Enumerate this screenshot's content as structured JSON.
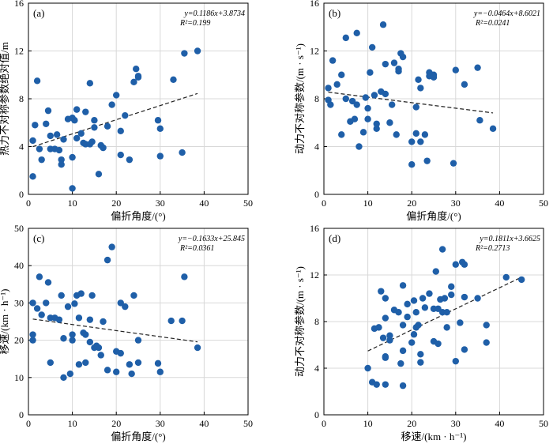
{
  "figure_title": "",
  "chart_data": [
    {
      "type": "scatter",
      "panel": "(a)",
      "xlabel": "偏折角度/(°)",
      "ylabel": "热力不对称参数绝对值/m",
      "xlim": [
        0,
        50
      ],
      "ylim": [
        0,
        16
      ],
      "xticks": [
        "0",
        "10",
        "20",
        "30",
        "40",
        "50"
      ],
      "yticks": [
        "0",
        "4",
        "8",
        "12",
        "16"
      ],
      "grid": true,
      "equation": "y=0.1186x+3.8734",
      "r2": "R²=0.199",
      "trend": {
        "slope": 0.1186,
        "intercept": 3.8734,
        "x_range": [
          1,
          38.5
        ]
      },
      "color": "#1f5fa8",
      "x": [
        1,
        1,
        1.5,
        2,
        2.5,
        3,
        4,
        4.5,
        5,
        5,
        6,
        6.5,
        7,
        7.5,
        7.5,
        8,
        9,
        10,
        10,
        10,
        10.5,
        11,
        11,
        12,
        12.5,
        13,
        13,
        14,
        14,
        14.5,
        15,
        15,
        16,
        16.5,
        17,
        17,
        18,
        19,
        20,
        21,
        21,
        22,
        23,
        24,
        24.5,
        25,
        25,
        29.5,
        30,
        30,
        33,
        35,
        35.5,
        38.5
      ],
      "y": [
        1.5,
        4.5,
        5.8,
        9.5,
        3.8,
        2.9,
        5.9,
        7,
        3.8,
        4.9,
        3.8,
        5,
        3.7,
        2.5,
        2.9,
        4.6,
        6.3,
        6.4,
        3.1,
        0.5,
        6.2,
        7.1,
        4.7,
        5.1,
        4.3,
        6.9,
        4.2,
        9.3,
        4.2,
        4.4,
        5.6,
        6.2,
        1.7,
        4.1,
        3.9,
        3.9,
        5.7,
        7.5,
        8.3,
        5.3,
        3.3,
        6.6,
        2.9,
        9.4,
        10.5,
        9.8,
        9.9,
        6.2,
        5.5,
        3.2,
        9.6,
        3.5,
        11.8,
        12
      ]
    },
    {
      "type": "scatter",
      "panel": "(b)",
      "xlabel": "偏折角度/(°)",
      "ylabel": "动力不对称参数/(m · s⁻¹)",
      "xlim": [
        0,
        50
      ],
      "ylim": [
        0,
        16
      ],
      "xticks": [
        "0",
        "10",
        "20",
        "30",
        "40",
        "50"
      ],
      "yticks": [
        "0",
        "4",
        "8",
        "12",
        "16"
      ],
      "grid": true,
      "equation": "y=−0.0464x+8.6021",
      "r2": "R²=0.0241",
      "trend": {
        "slope": -0.0464,
        "intercept": 8.6021,
        "x_range": [
          1,
          38.5
        ]
      },
      "color": "#1f5fa8",
      "x": [
        1,
        1,
        1.5,
        2,
        3,
        4,
        4,
        5,
        5,
        6,
        6.5,
        7,
        7.5,
        7.5,
        8,
        9,
        9.5,
        10,
        10,
        10.5,
        11,
        11.5,
        12,
        12,
        13,
        13.5,
        14,
        14,
        15,
        15.5,
        16,
        16.5,
        17,
        17,
        17.5,
        18,
        20,
        20,
        21,
        21,
        21.5,
        22,
        22,
        23,
        23.5,
        24,
        24,
        25,
        25,
        29.5,
        30,
        32,
        35,
        35.5,
        38.5
      ],
      "y": [
        8.9,
        7.9,
        7.5,
        11.2,
        9.2,
        10,
        5,
        8,
        13.1,
        6.1,
        7.8,
        6.3,
        7.5,
        13.5,
        4,
        5.2,
        8.1,
        7.2,
        6.3,
        10.2,
        12.3,
        8.3,
        5.5,
        5.9,
        8.6,
        14.2,
        8.4,
        10.9,
        6,
        7.5,
        11,
        5,
        10.5,
        10.3,
        11.8,
        11.5,
        4.4,
        2.5,
        7.3,
        5.1,
        9.6,
        4.4,
        8.9,
        5,
        2.8,
        10.2,
        9.9,
        10,
        9.8,
        2.6,
        10.4,
        9.2,
        10.6,
        6.2,
        5.5
      ]
    },
    {
      "type": "scatter",
      "panel": "(c)",
      "xlabel": "偏折角度/(°)",
      "ylabel": "移速/(km · h⁻¹)",
      "xlim": [
        0,
        50
      ],
      "ylim": [
        0,
        50
      ],
      "xticks": [
        "0",
        "10",
        "20",
        "30",
        "40",
        "50"
      ],
      "yticks": [
        "0",
        "10",
        "20",
        "30",
        "40",
        "50"
      ],
      "grid": true,
      "equation": "y=−0.1633x+25.845",
      "r2": "R²=0.0361",
      "trend": {
        "slope": -0.1633,
        "intercept": 25.845,
        "x_range": [
          1,
          38.5
        ]
      },
      "color": "#1f5fa8",
      "x": [
        1,
        1,
        1,
        2,
        2.5,
        3,
        4,
        4.5,
        5,
        5,
        6,
        7,
        7.5,
        8,
        8,
        9,
        9.5,
        10,
        10,
        10.5,
        11,
        11.5,
        11.5,
        12,
        12.5,
        13,
        13,
        14,
        14,
        14.5,
        15,
        15.5,
        16,
        16.5,
        17,
        18,
        18,
        19,
        20,
        20,
        21,
        21,
        22,
        23,
        23.5,
        24,
        25,
        25,
        29.5,
        30,
        32.5,
        35,
        35.5,
        38.5
      ],
      "y": [
        30,
        21.5,
        20,
        28.5,
        37,
        26.8,
        30,
        35.5,
        26,
        14,
        26,
        25.5,
        32,
        10,
        20.5,
        29,
        11,
        21.5,
        20,
        29.8,
        32,
        26,
        13.5,
        32.5,
        22,
        14,
        21.5,
        19.5,
        25.5,
        32,
        18,
        18.5,
        18,
        16,
        25,
        41.5,
        12,
        45,
        17,
        11.5,
        16.5,
        30,
        29,
        13.5,
        11,
        32,
        14,
        20,
        13.8,
        11.5,
        25.2,
        25.2,
        37,
        18
      ]
    },
    {
      "type": "scatter",
      "panel": "(d)",
      "xlabel": "移速/(km · h⁻¹)",
      "ylabel": "动力不对称参数/(m · s⁻¹)",
      "xlim": [
        0,
        50
      ],
      "ylim": [
        0,
        16
      ],
      "xticks": [
        "0",
        "10",
        "20",
        "30",
        "40",
        "50"
      ],
      "yticks": [
        "0",
        "4",
        "8",
        "12",
        "16"
      ],
      "grid": true,
      "equation": "y=0.1811x+3.6625",
      "r2": "R²=0.2713",
      "trend": {
        "slope": 0.1811,
        "intercept": 3.6625,
        "x_range": [
          10,
          45
        ]
      },
      "color": "#1f5fa8",
      "x": [
        10,
        11,
        11.5,
        12,
        12.5,
        13,
        13.5,
        14,
        14,
        14,
        14,
        14,
        15,
        15,
        16,
        17,
        17.5,
        18,
        18,
        18,
        18,
        19,
        19,
        20,
        20.5,
        20.5,
        21,
        21,
        21.5,
        22,
        22,
        22.5,
        23,
        24,
        25,
        25,
        25.5,
        26,
        26,
        26.5,
        27,
        27,
        27.5,
        28,
        28,
        29,
        29,
        30,
        30,
        31,
        31.5,
        32,
        32,
        32,
        35,
        37,
        37,
        41.5,
        45
      ],
      "y": [
        4,
        2.8,
        7.4,
        2.6,
        7.5,
        10.6,
        6.6,
        5,
        4.9,
        2.6,
        10,
        8.3,
        6.4,
        6.8,
        9,
        8.8,
        4.4,
        5.5,
        2.5,
        11.1,
        7.7,
        9.5,
        8.4,
        6.2,
        6.9,
        9.8,
        8.8,
        7.5,
        7.7,
        4.5,
        5.2,
        10,
        9.2,
        10.4,
        9.1,
        6.3,
        12.3,
        9.1,
        6.1,
        9.9,
        14.2,
        8.8,
        10,
        8.8,
        7.5,
        11,
        10.3,
        12.9,
        4.6,
        7.9,
        13.1,
        10.1,
        5.6,
        12.9,
        10,
        6.2,
        7.7,
        11.8,
        11.6
      ]
    }
  ]
}
